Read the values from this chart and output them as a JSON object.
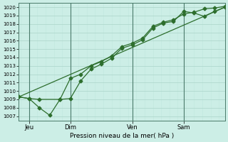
{
  "xlabel": "Pression niveau de la mer( hPa )",
  "yticks": [
    1007,
    1008,
    1009,
    1010,
    1011,
    1012,
    1013,
    1014,
    1015,
    1016,
    1017,
    1018,
    1019,
    1020
  ],
  "ylim": [
    1006.5,
    1020.5
  ],
  "xlim": [
    0,
    10.0
  ],
  "xtick_positions": [
    0.5,
    2.5,
    5.5,
    8.0
  ],
  "xtick_labels": [
    "Jeu",
    "Dim",
    "Ven",
    "Sam"
  ],
  "vline_positions": [
    0.5,
    2.5,
    5.5,
    8.0
  ],
  "bg_color": "#cceee6",
  "line_color": "#2d6e2d",
  "grid_major_color": "#aad4c8",
  "grid_minor_color": "#c0e8de",
  "line1_x": [
    0.0,
    0.5,
    1.0,
    1.5,
    2.0,
    2.5,
    3.0,
    3.5,
    4.0,
    4.5,
    5.0,
    5.5,
    6.0,
    6.5,
    7.0,
    7.5,
    8.0,
    8.5,
    9.0,
    9.5,
    10.0
  ],
  "line1_y": [
    1009.3,
    1009.1,
    1008.0,
    1007.1,
    1009.0,
    1009.1,
    1011.2,
    1012.6,
    1013.2,
    1013.9,
    1015.1,
    1015.5,
    1016.1,
    1017.5,
    1018.1,
    1018.3,
    1019.5,
    1019.3,
    1018.9,
    1019.5,
    1020.0
  ],
  "line2_x": [
    0.0,
    0.5,
    1.0,
    2.0,
    2.5,
    3.0,
    3.5,
    4.0,
    4.5,
    5.0,
    5.5,
    6.0,
    6.5,
    7.0,
    7.5,
    8.0,
    8.5,
    9.0,
    9.5,
    10.0
  ],
  "line2_y": [
    1009.3,
    1009.1,
    1009.0,
    1009.0,
    1011.5,
    1012.0,
    1013.0,
    1013.5,
    1014.2,
    1015.3,
    1015.7,
    1016.3,
    1017.7,
    1018.2,
    1018.5,
    1019.2,
    1019.4,
    1019.8,
    1019.9,
    1020.1
  ],
  "line3_x": [
    0.0,
    10.0
  ],
  "line3_y": [
    1009.3,
    1020.0
  ],
  "marker": "D",
  "markersize": 2.5,
  "linewidth": 0.9
}
